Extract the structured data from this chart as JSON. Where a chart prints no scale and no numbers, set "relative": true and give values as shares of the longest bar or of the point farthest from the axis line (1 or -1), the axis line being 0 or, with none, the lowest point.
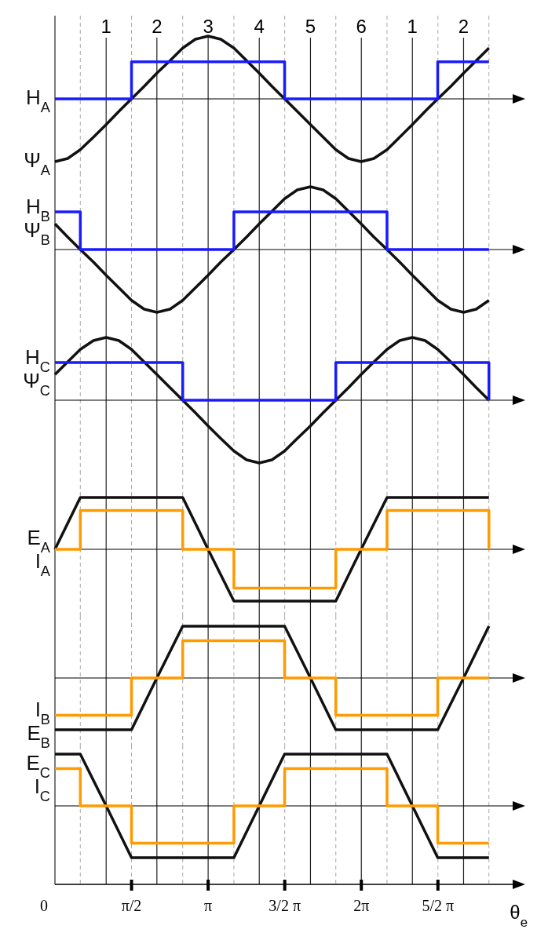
{
  "chart_data": [
    {
      "type": "line",
      "relative": true,
      "xlim": [
        0,
        9.58
      ],
      "grid": "x",
      "tick_labels": false,
      "xticks": [
        {
          "value": 0,
          "label": null
        },
        {
          "value": 0.52,
          "label": null
        },
        {
          "value": 1.05,
          "label": null
        },
        {
          "value": 1.5708,
          "label": null
        },
        {
          "value": 2.09,
          "label": null
        },
        {
          "value": 2.62,
          "label": null
        },
        {
          "value": 3.1416,
          "label": null
        },
        {
          "value": 3.67,
          "label": null
        },
        {
          "value": 4.19,
          "label": null
        },
        {
          "value": 4.7124,
          "label": null
        },
        {
          "value": 5.24,
          "label": null
        },
        {
          "value": 5.76,
          "label": null
        },
        {
          "value": 6.2832,
          "label": null
        },
        {
          "value": 6.81,
          "label": null
        },
        {
          "value": 7.33,
          "label": null
        },
        {
          "value": 7.854,
          "label": null
        },
        {
          "value": 8.38,
          "label": null
        },
        {
          "value": 8.9,
          "label": null
        }
      ],
      "annotations": [
        "1",
        "2",
        "3",
        "4",
        "5",
        "6",
        "1",
        "2"
      ],
      "series": [
        {
          "name": "Ψ$_{A}$",
          "color": "#111111",
          "x": [
            0,
            0.26,
            0.52,
            0.79,
            1.05,
            1.31,
            1.57,
            1.83,
            2.09,
            2.36,
            2.62,
            2.88,
            3.14,
            3.4,
            3.67,
            3.93,
            4.19,
            4.45,
            4.71,
            4.97,
            5.24,
            5.5,
            5.76,
            6.02,
            6.28,
            6.54,
            6.81,
            7.07,
            7.33,
            7.59,
            7.85,
            8.12,
            8.38,
            8.64,
            8.9
          ],
          "values": [
            -1,
            -0.95,
            -0.81,
            -0.61,
            -0.41,
            -0.2,
            0,
            0.2,
            0.41,
            0.61,
            0.81,
            0.95,
            1,
            0.95,
            0.81,
            0.61,
            0.41,
            0.2,
            0,
            -0.2,
            -0.41,
            -0.61,
            -0.81,
            -0.95,
            -1,
            -0.95,
            -0.81,
            -0.61,
            -0.41,
            -0.2,
            0,
            0.2,
            0.41,
            0.61,
            0.81
          ]
        },
        {
          "name": "H$_{A}$",
          "type": "step",
          "color": "#1a1aff",
          "x": [
            0,
            1.57,
            4.71,
            7.85,
            8.9
          ],
          "values": [
            0,
            0.59,
            0,
            0.59,
            0.59
          ]
        }
      ]
    },
    {
      "type": "line",
      "relative": true,
      "xlim": [
        0,
        9.58
      ],
      "grid": "x",
      "tick_labels": false,
      "xticks": [
        {
          "value": 0,
          "label": null
        },
        {
          "value": 0.52,
          "label": null
        },
        {
          "value": 1.05,
          "label": null
        },
        {
          "value": 1.5708,
          "label": null
        },
        {
          "value": 2.09,
          "label": null
        },
        {
          "value": 2.62,
          "label": null
        },
        {
          "value": 3.1416,
          "label": null
        },
        {
          "value": 3.67,
          "label": null
        },
        {
          "value": 4.19,
          "label": null
        },
        {
          "value": 4.7124,
          "label": null
        },
        {
          "value": 5.24,
          "label": null
        },
        {
          "value": 5.76,
          "label": null
        },
        {
          "value": 6.2832,
          "label": null
        },
        {
          "value": 6.81,
          "label": null
        },
        {
          "value": 7.33,
          "label": null
        },
        {
          "value": 7.854,
          "label": null
        },
        {
          "value": 8.38,
          "label": null
        },
        {
          "value": 8.9,
          "label": null
        }
      ],
      "series": [
        {
          "name": "Ψ$_{B}$",
          "color": "#111111",
          "x": [
            0,
            0.26,
            0.52,
            0.79,
            1.05,
            1.31,
            1.57,
            1.83,
            2.09,
            2.36,
            2.62,
            2.88,
            3.14,
            3.4,
            3.67,
            3.93,
            4.19,
            4.45,
            4.71,
            4.97,
            5.24,
            5.5,
            5.76,
            6.02,
            6.28,
            6.54,
            6.81,
            7.07,
            7.33,
            7.59,
            7.85,
            8.12,
            8.38,
            8.64,
            8.9
          ],
          "values": [
            0.41,
            0.2,
            0,
            -0.2,
            -0.41,
            -0.61,
            -0.81,
            -0.95,
            -1,
            -0.95,
            -0.81,
            -0.61,
            -0.41,
            -0.2,
            0,
            0.2,
            0.41,
            0.61,
            0.81,
            0.95,
            1,
            0.95,
            0.81,
            0.61,
            0.41,
            0.2,
            0,
            -0.2,
            -0.41,
            -0.61,
            -0.81,
            -0.95,
            -1,
            -0.95,
            -0.81
          ]
        },
        {
          "name": "H$_{B}$",
          "type": "step",
          "color": "#1a1aff",
          "x": [
            0,
            0.52,
            3.67,
            6.81,
            8.9
          ],
          "values": [
            0.6,
            0,
            0.6,
            0,
            0
          ]
        }
      ]
    },
    {
      "type": "line",
      "relative": true,
      "xlim": [
        0,
        9.58
      ],
      "grid": "x",
      "tick_labels": false,
      "xticks": [
        {
          "value": 0,
          "label": null
        },
        {
          "value": 0.52,
          "label": null
        },
        {
          "value": 1.05,
          "label": null
        },
        {
          "value": 1.5708,
          "label": null
        },
        {
          "value": 2.09,
          "label": null
        },
        {
          "value": 2.62,
          "label": null
        },
        {
          "value": 3.1416,
          "label": null
        },
        {
          "value": 3.67,
          "label": null
        },
        {
          "value": 4.19,
          "label": null
        },
        {
          "value": 4.7124,
          "label": null
        },
        {
          "value": 5.24,
          "label": null
        },
        {
          "value": 5.76,
          "label": null
        },
        {
          "value": 6.2832,
          "label": null
        },
        {
          "value": 6.81,
          "label": null
        },
        {
          "value": 7.33,
          "label": null
        },
        {
          "value": 7.854,
          "label": null
        },
        {
          "value": 8.38,
          "label": null
        },
        {
          "value": 8.9,
          "label": null
        }
      ],
      "series": [
        {
          "name": "Ψ$_{C}$",
          "color": "#111111",
          "x": [
            0,
            0.26,
            0.52,
            0.79,
            1.05,
            1.31,
            1.57,
            1.83,
            2.09,
            2.36,
            2.62,
            2.88,
            3.14,
            3.4,
            3.67,
            3.93,
            4.19,
            4.45,
            4.71,
            4.97,
            5.24,
            5.5,
            5.76,
            6.02,
            6.28,
            6.54,
            6.81,
            7.07,
            7.33,
            7.59,
            7.85,
            8.12,
            8.38,
            8.64,
            8.9
          ],
          "values": [
            0.41,
            0.61,
            0.81,
            0.95,
            1,
            0.95,
            0.81,
            0.61,
            0.41,
            0.2,
            0,
            -0.2,
            -0.41,
            -0.61,
            -0.81,
            -0.95,
            -1,
            -0.95,
            -0.81,
            -0.61,
            -0.41,
            -0.2,
            0,
            0.2,
            0.41,
            0.61,
            0.81,
            0.95,
            1,
            0.95,
            0.81,
            0.61,
            0.41,
            0.2,
            0
          ]
        },
        {
          "name": "H$_{C}$",
          "type": "step",
          "color": "#1a1aff",
          "x": [
            0,
            2.62,
            5.76,
            8.9
          ],
          "values": [
            0.6,
            0,
            0.6,
            0
          ]
        }
      ]
    },
    {
      "type": "line",
      "relative": true,
      "xlim": [
        0,
        9.58
      ],
      "grid": "x",
      "tick_labels": false,
      "xticks": [
        {
          "value": 0,
          "label": null
        },
        {
          "value": 0.52,
          "label": null
        },
        {
          "value": 1.05,
          "label": null
        },
        {
          "value": 1.5708,
          "label": null
        },
        {
          "value": 2.09,
          "label": null
        },
        {
          "value": 2.62,
          "label": null
        },
        {
          "value": 3.1416,
          "label": null
        },
        {
          "value": 3.67,
          "label": null
        },
        {
          "value": 4.19,
          "label": null
        },
        {
          "value": 4.7124,
          "label": null
        },
        {
          "value": 5.24,
          "label": null
        },
        {
          "value": 5.76,
          "label": null
        },
        {
          "value": 6.2832,
          "label": null
        },
        {
          "value": 6.81,
          "label": null
        },
        {
          "value": 7.33,
          "label": null
        },
        {
          "value": 7.854,
          "label": null
        },
        {
          "value": 8.38,
          "label": null
        },
        {
          "value": 8.9,
          "label": null
        }
      ],
      "series": [
        {
          "name": "E$_{A}$",
          "color": "#111111",
          "x": [
            0,
            0.52,
            2.62,
            3.14,
            3.67,
            5.76,
            6.28,
            6.81,
            8.9
          ],
          "values": [
            0,
            1,
            1,
            0,
            -1,
            -1,
            0,
            1,
            1
          ]
        },
        {
          "name": "I$_{A}$",
          "type": "step",
          "color": "#ff9a00",
          "x": [
            0,
            0.52,
            2.62,
            3.67,
            5.76,
            6.81,
            8.9
          ],
          "values": [
            0,
            0.75,
            0,
            -0.75,
            0,
            0.75,
            0
          ]
        }
      ]
    },
    {
      "type": "line",
      "relative": true,
      "xlim": [
        0,
        9.58
      ],
      "grid": "x",
      "tick_labels": false,
      "xticks": [
        {
          "value": 0,
          "label": null
        },
        {
          "value": 0.52,
          "label": null
        },
        {
          "value": 1.05,
          "label": null
        },
        {
          "value": 1.5708,
          "label": null
        },
        {
          "value": 2.09,
          "label": null
        },
        {
          "value": 2.62,
          "label": null
        },
        {
          "value": 3.1416,
          "label": null
        },
        {
          "value": 3.67,
          "label": null
        },
        {
          "value": 4.19,
          "label": null
        },
        {
          "value": 4.7124,
          "label": null
        },
        {
          "value": 5.24,
          "label": null
        },
        {
          "value": 5.76,
          "label": null
        },
        {
          "value": 6.2832,
          "label": null
        },
        {
          "value": 6.81,
          "label": null
        },
        {
          "value": 7.33,
          "label": null
        },
        {
          "value": 7.854,
          "label": null
        },
        {
          "value": 8.38,
          "label": null
        },
        {
          "value": 8.9,
          "label": null
        }
      ],
      "series": [
        {
          "name": "E$_{B}$",
          "color": "#111111",
          "x": [
            0,
            1.57,
            2.09,
            2.62,
            4.71,
            5.24,
            5.76,
            7.85,
            8.38,
            8.9
          ],
          "values": [
            -1,
            -1,
            0,
            1,
            1,
            0,
            -1,
            -1,
            0,
            1
          ]
        },
        {
          "name": "I$_{B}$",
          "type": "step",
          "color": "#ff9a00",
          "x": [
            0,
            1.57,
            2.62,
            4.71,
            5.76,
            7.85,
            8.9
          ],
          "values": [
            -0.72,
            0,
            0.72,
            0,
            -0.72,
            0,
            0
          ]
        }
      ]
    },
    {
      "type": "line",
      "relative": true,
      "xlim": [
        0,
        9.58
      ],
      "grid": "x",
      "tick_labels": "x",
      "xlabel": "θ$_{e}$",
      "xticks": [
        {
          "value": 0,
          "label": "0"
        },
        {
          "value": 0.52,
          "label": null
        },
        {
          "value": 1.05,
          "label": null
        },
        {
          "value": 1.5708,
          "label": "π/2"
        },
        {
          "value": 2.09,
          "label": null
        },
        {
          "value": 2.62,
          "label": null
        },
        {
          "value": 3.1416,
          "label": "π"
        },
        {
          "value": 3.67,
          "label": null
        },
        {
          "value": 4.19,
          "label": null
        },
        {
          "value": 4.7124,
          "label": "3/2 π"
        },
        {
          "value": 5.24,
          "label": null
        },
        {
          "value": 5.76,
          "label": null
        },
        {
          "value": 6.2832,
          "label": "2π"
        },
        {
          "value": 6.81,
          "label": null
        },
        {
          "value": 7.33,
          "label": null
        },
        {
          "value": 7.854,
          "label": "5/2 π"
        },
        {
          "value": 8.38,
          "label": null
        },
        {
          "value": 8.9,
          "label": null
        }
      ],
      "series": [
        {
          "name": "E$_{C}$",
          "color": "#111111",
          "x": [
            0,
            0.52,
            1.05,
            1.57,
            3.67,
            4.19,
            4.71,
            6.81,
            7.33,
            7.85,
            8.9
          ],
          "values": [
            1,
            1,
            0,
            -1,
            -1,
            0,
            1,
            1,
            0,
            -1,
            -1
          ]
        },
        {
          "name": "I$_{C}$",
          "type": "step",
          "color": "#ff9a00",
          "x": [
            0,
            0.52,
            1.57,
            3.67,
            4.71,
            6.81,
            7.85,
            8.9
          ],
          "values": [
            0.72,
            0,
            -0.72,
            0,
            0.72,
            0,
            -0.72,
            -0.72
          ]
        }
      ]
    }
  ]
}
